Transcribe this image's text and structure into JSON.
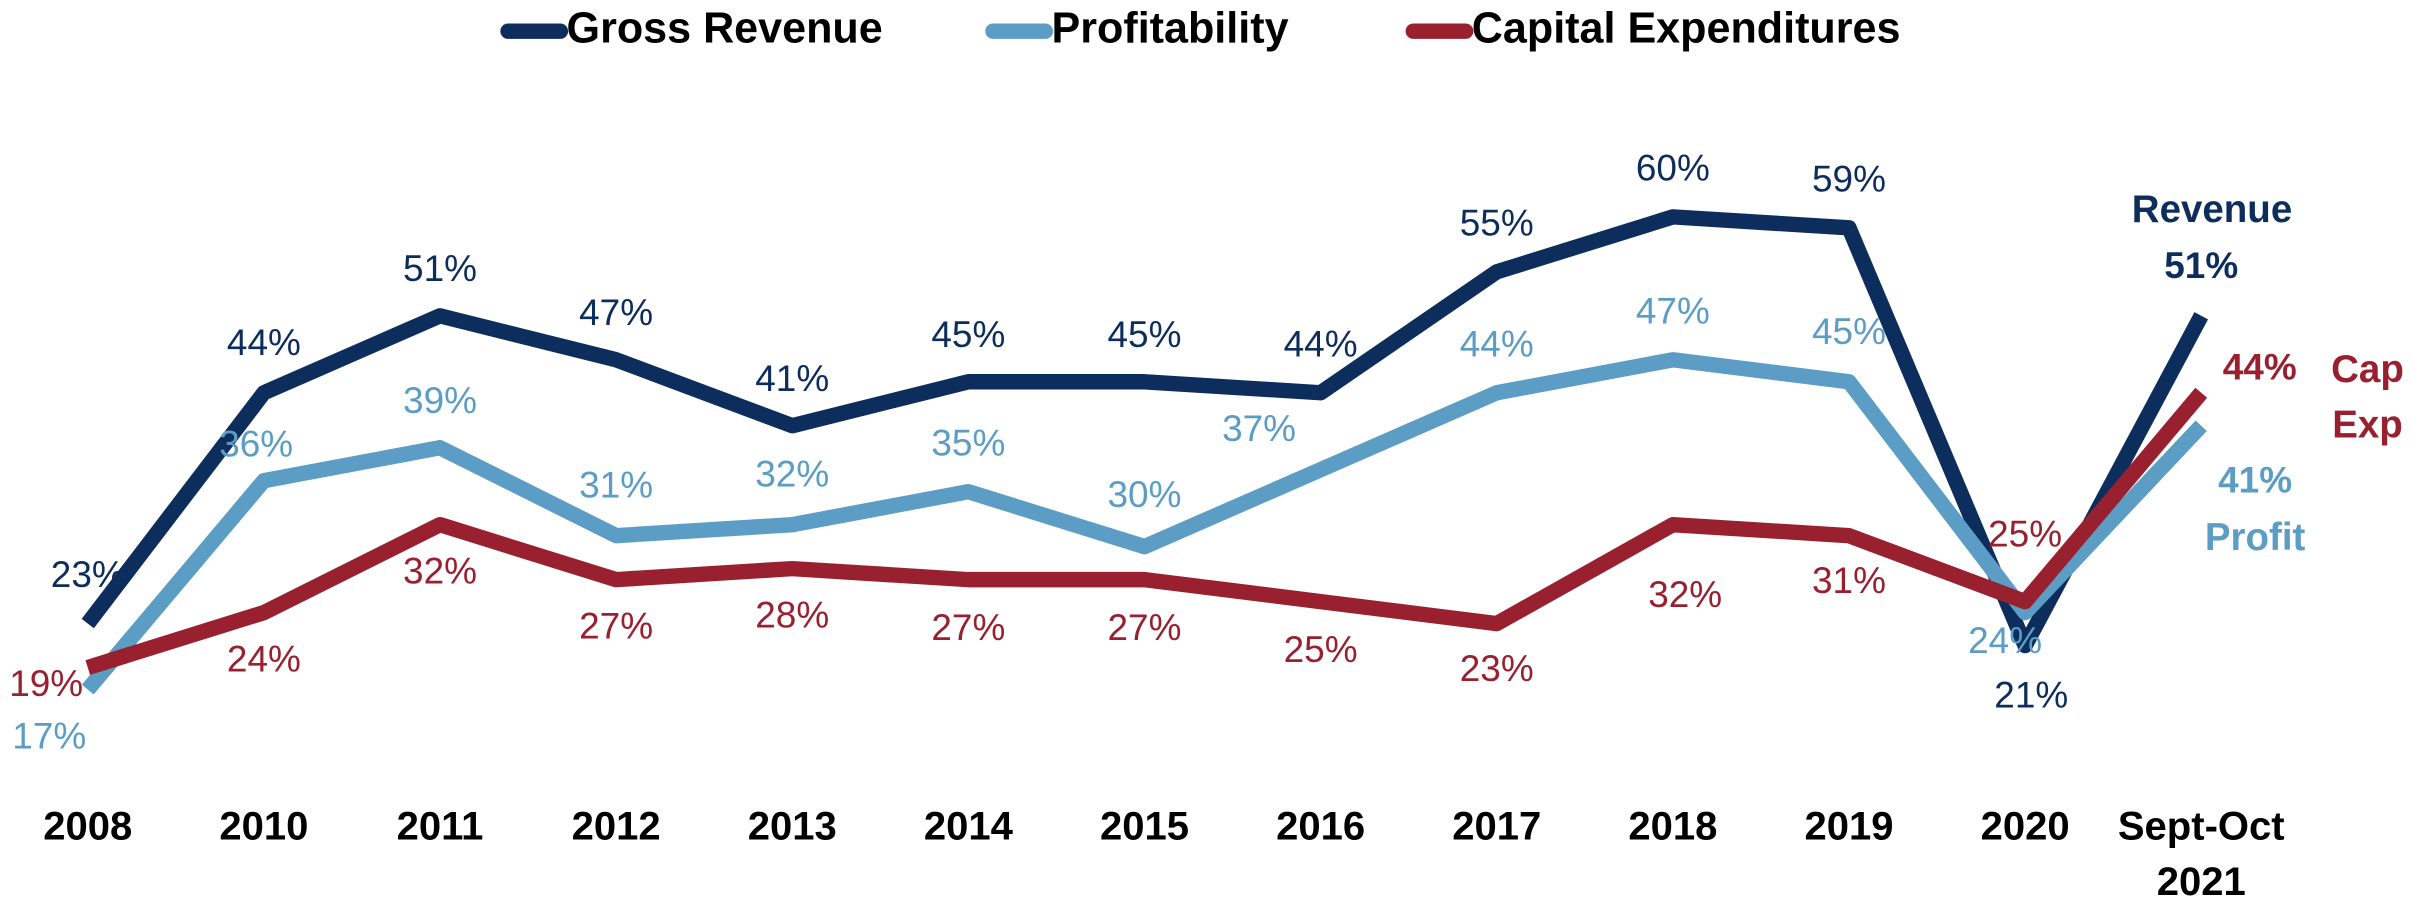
{
  "chart_data": {
    "type": "line",
    "categories": [
      "2008",
      "2010",
      "2011",
      "2012",
      "2013",
      "2014",
      "2015",
      "2016",
      "2017",
      "2018",
      "2019",
      "2020",
      "Sept-Oct 2021"
    ],
    "series": [
      {
        "name": "Gross Revenue",
        "color": "#0d2d5c",
        "end_label": "Revenue",
        "values": [
          23,
          44,
          51,
          47,
          41,
          45,
          45,
          44,
          55,
          60,
          59,
          21,
          51
        ],
        "value_labels": [
          "23%",
          "44%",
          "51%",
          "47%",
          "41%",
          "45%",
          "45%",
          "44%",
          "55%",
          "60%",
          "59%",
          "21%",
          "51%"
        ]
      },
      {
        "name": "Profitability",
        "color": "#5b9dc4",
        "end_label": "Profit",
        "values": [
          17,
          36,
          39,
          31,
          32,
          35,
          30,
          37,
          44,
          47,
          45,
          24,
          41
        ],
        "value_labels": [
          "17%",
          "36%",
          "39%",
          "31%",
          "32%",
          "35%",
          "30%",
          "37%",
          "44%",
          "47%",
          "45%",
          "24%",
          "41%"
        ]
      },
      {
        "name": "Capital Expenditures",
        "color": "#98202f",
        "end_label": "Cap Exp",
        "values": [
          19,
          24,
          32,
          27,
          28,
          27,
          27,
          25,
          23,
          32,
          31,
          25,
          44
        ],
        "value_labels": [
          "19%",
          "24%",
          "32%",
          "27%",
          "28%",
          "27%",
          "27%",
          "25%",
          "23%",
          "32%",
          "31%",
          "25%",
          "44%"
        ]
      }
    ]
  }
}
